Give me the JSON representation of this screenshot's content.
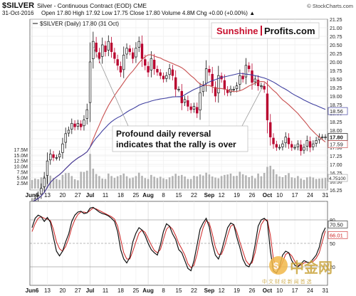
{
  "header": {
    "symbol": "$SILVER",
    "description": "Silver - Continuous Contract (EOD)  CME",
    "credit": "© StockCharts.com",
    "date": "31-Oct-2016",
    "ohlc": "Open 17.80  High 17.92  Low 17.75  Close 17.80  Volume 4.8M  Chg +0.00 (+0.00%) ▲",
    "legend": "$SILVER (Daily) 17.80 (31 Oct)"
  },
  "brand": {
    "left": "Sunshine",
    "right": "Profits.com",
    "watermark": "中金网",
    "watermark_sub": "中 文 财 经 新 闻 首 选"
  },
  "annotation": {
    "line1": "Profound daily reversal",
    "line2": "indicates that the rally is over"
  },
  "colors": {
    "up": "#111111",
    "down": "#b8002e",
    "sma_fast": "#c85050",
    "sma_slow": "#4040a0",
    "volume": "#b3b3b3",
    "stoch_k": "#111111",
    "stoch_d": "#cc2222",
    "brand_red": "#c8102e"
  },
  "chart_data": [
    {
      "type": "candlestick",
      "title": "$SILVER Silver - Continuous Contract (EOD) CME",
      "ylim": [
        16.25,
        21.25
      ],
      "y_ticks": [
        "21.25",
        "21.00",
        "20.75",
        "20.50",
        "20.25",
        "20.00",
        "19.75",
        "19.50",
        "19.25",
        "19.00",
        "18.75",
        "18.50",
        "18.25",
        "18.00",
        "17.75",
        "17.50",
        "17.25",
        "17.00",
        "16.75",
        "16.50",
        "16.25"
      ],
      "y_tick_values": [
        21.25,
        21.0,
        20.75,
        20.5,
        20.25,
        20.0,
        19.75,
        19.5,
        19.25,
        19.0,
        18.75,
        18.5,
        18.25,
        18.0,
        17.75,
        17.5,
        17.25,
        17.0,
        16.75,
        16.5,
        16.25
      ],
      "x_labels": [
        "Jun6",
        "13",
        "20",
        "27",
        "Jul",
        "11",
        "18",
        "25",
        "Aug",
        "8",
        "15",
        "22",
        "Sep",
        "12",
        "19",
        "26",
        "Oct",
        "10",
        "17",
        "24",
        "31"
      ],
      "x_label_index": [
        0,
        5,
        10,
        15,
        19,
        24,
        29,
        34,
        38,
        43,
        48,
        53,
        58,
        62,
        67,
        72,
        77,
        81,
        86,
        91,
        96
      ],
      "last_values": {
        "close": "17.80",
        "sma_fast": "17.59",
        "sma_slow": "18.56"
      },
      "close": [
        15.9,
        16.0,
        16.1,
        16.3,
        16.6,
        17.1,
        17.3,
        17.2,
        17.2,
        17.3,
        17.6,
        17.9,
        18.0,
        18.2,
        18.1,
        18.2,
        18.1,
        18.3,
        18.6,
        20.0,
        20.6,
        20.3,
        20.1,
        20.5,
        20.3,
        20.6,
        20.3,
        20.1,
        19.9,
        19.7,
        20.2,
        20.4,
        20.3,
        20.1,
        20.4,
        20.6,
        20.1,
        19.9,
        19.7,
        20.1,
        19.8,
        19.7,
        19.6,
        19.5,
        19.6,
        19.8,
        19.6,
        19.2,
        19.2,
        18.8,
        18.9,
        18.7,
        18.6,
        18.7,
        18.5,
        19.1,
        19.3,
        19.8,
        19.7,
        19.3,
        19.0,
        19.6,
        19.5,
        19.2,
        19.1,
        19.2,
        19.2,
        19.3,
        19.6,
        19.5,
        19.9,
        19.8,
        19.4,
        19.5,
        19.3,
        19.3,
        19.2,
        18.3,
        17.8,
        17.6,
        17.5,
        17.5,
        17.6,
        17.8,
        17.6,
        17.5,
        17.5,
        17.6,
        17.4,
        17.5,
        17.7,
        17.5,
        17.6,
        17.7,
        17.8,
        17.8,
        17.8
      ]
    },
    {
      "type": "bar",
      "title": "Volume",
      "ylim": [
        0,
        17.5
      ],
      "y_ticks": [
        "17.5M",
        "15.0M",
        "12.5M",
        "10.0M",
        "7.5M",
        "5.0M",
        "2.5M"
      ],
      "y_tick_values": [
        17.5,
        15.0,
        12.5,
        10.0,
        7.5,
        5.0,
        2.5
      ],
      "last_label": "4.75100",
      "values_m": [
        3.8,
        4.5,
        4.2,
        5.0,
        5.6,
        6.3,
        5.8,
        4.7,
        4.3,
        3.9,
        6.1,
        6.9,
        7.0,
        5.6,
        4.2,
        3.7,
        7.5,
        7.4,
        8.0,
        15.5,
        8.9,
        6.5,
        5.6,
        4.5,
        4.3,
        6.7,
        5.6,
        4.8,
        5.5,
        6.0,
        6.7,
        5.5,
        4.6,
        4.9,
        5.6,
        7.1,
        5.7,
        4.7,
        4.3,
        6.1,
        5.3,
        4.7,
        5.3,
        4.6,
        4.2,
        5.0,
        5.6,
        6.6,
        5.7,
        6.1,
        5.4,
        4.3,
        4.3,
        5.7,
        5.5,
        6.3,
        5.8,
        7.1,
        6.3,
        5.4,
        4.9,
        4.6,
        5.6,
        6.1,
        6.3,
        6.7,
        5.6,
        5.7,
        7.5,
        6.4,
        5.9,
        5.1,
        5.7,
        4.6,
        6.7,
        5.5,
        7.0,
        9.7,
        10.2,
        8.6,
        6.4,
        5.4,
        5.1,
        6.0,
        6.9,
        5.0,
        4.7,
        5.6,
        4.5,
        3.9,
        5.0,
        5.3,
        4.9,
        4.3,
        4.5,
        4.6,
        4.8
      ]
    },
    {
      "type": "line",
      "title": "Slow Stochastic",
      "ylim": [
        0,
        100
      ],
      "y_ticks": [
        "80",
        "50",
        "20"
      ],
      "y_tick_values": [
        80,
        50,
        20
      ],
      "last_values": {
        "k": "70.50",
        "d": "66.01"
      },
      "series": [
        {
          "values": [
            70,
            82,
            86,
            84,
            78,
            83,
            77,
            58,
            40,
            34,
            40,
            52,
            62,
            78,
            86,
            90,
            91,
            88,
            89,
            95,
            96,
            93,
            90,
            88,
            87,
            85,
            82,
            78,
            65,
            42,
            30,
            25,
            32,
            52,
            63,
            70,
            67,
            60,
            50,
            42,
            38,
            35,
            48,
            65,
            75,
            72,
            62,
            55,
            42,
            38,
            28,
            18,
            15,
            28,
            48,
            68,
            76,
            82,
            71,
            50,
            35,
            30,
            40,
            55,
            70,
            76,
            74,
            58,
            45,
            30,
            22,
            20,
            28,
            48,
            72,
            80,
            82,
            78,
            40,
            15,
            12,
            20,
            35,
            40,
            38,
            28,
            22,
            20,
            24,
            28,
            26,
            25,
            30,
            35,
            45,
            62,
            70
          ]
        },
        {
          "values": [
            65,
            75,
            82,
            84,
            82,
            81,
            79,
            68,
            52,
            43,
            40,
            46,
            56,
            70,
            80,
            87,
            90,
            90,
            89,
            92,
            95,
            94,
            92,
            90,
            88,
            86,
            84,
            81,
            72,
            55,
            38,
            30,
            30,
            40,
            52,
            63,
            67,
            64,
            56,
            48,
            41,
            38,
            42,
            55,
            68,
            72,
            68,
            60,
            50,
            43,
            35,
            24,
            19,
            22,
            36,
            55,
            70,
            79,
            76,
            62,
            45,
            36,
            36,
            46,
            60,
            72,
            74,
            65,
            52,
            40,
            28,
            23,
            25,
            38,
            58,
            74,
            80,
            80,
            60,
            30,
            18,
            17,
            26,
            36,
            38,
            34,
            27,
            22,
            22,
            25,
            26,
            25,
            27,
            31,
            38,
            52,
            66
          ]
        }
      ]
    }
  ]
}
